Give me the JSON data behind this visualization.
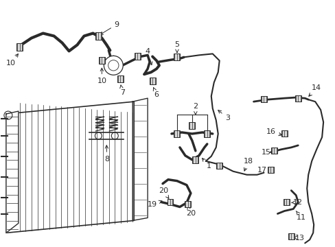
{
  "background_color": "#ffffff",
  "line_color": "#2a2a2a",
  "fig_width": 4.89,
  "fig_height": 3.6,
  "dpi": 100
}
